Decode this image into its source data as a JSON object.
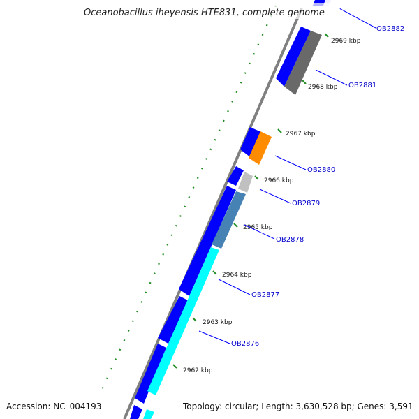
{
  "title": "Oceanobacillus iheyensis HTE831, complete genome",
  "footer": {
    "accession": "Accession: NC_004193",
    "topology": "Topology: circular; Length: 3,630,528 bp; Genes: 3,591"
  },
  "kbp_labels": [
    "2969 kbp",
    "2968 kbp",
    "2967 kbp",
    "2966 kbp",
    "2965 kbp",
    "2964 kbp",
    "2963 kbp",
    "2962 kbp"
  ],
  "gene_labels": [
    "OB2882",
    "OB2881",
    "OB2880",
    "OB2879",
    "OB2878",
    "OB2877",
    "OB2876"
  ],
  "colors": {
    "backbone": "#808080",
    "tick": "#228b22",
    "dots": "#228b22",
    "gene_label": "#0000cc",
    "callout_line": "#0000ff",
    "cds_minus": "#0000ff",
    "cds_plus_gray": "#696969",
    "cds_plus_orange": "#ff8c00",
    "cds_plus_light": "#c0c0c0",
    "cds_plus_steel": "#4682b4",
    "cds_plus_cyan": "#00ffff"
  }
}
